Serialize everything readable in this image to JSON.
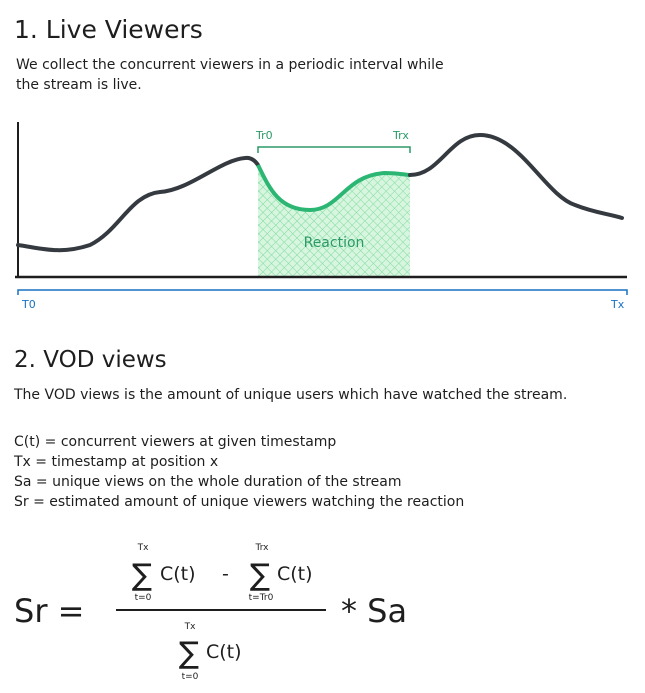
{
  "section1": {
    "title": "1. Live Viewers",
    "description": [
      "We collect the concurrent viewers in a periodic interval while",
      "the stream is live."
    ],
    "chart_labels": {
      "reaction_start": "Tr0",
      "reaction_end": "Trx",
      "reaction": "Reaction",
      "start": "T0",
      "end": "Tx"
    }
  },
  "section2": {
    "title": "2. VOD views",
    "description": "The VOD views is the amount of unique users which have watched the stream.",
    "definitions": [
      "C(t) = concurrent viewers at given timestamp",
      "Tx = timestamp at position x",
      "Sa = unique views on the whole duration of the stream",
      "Sr = estimated amount of unique viewers watching the reaction"
    ],
    "formula": {
      "lhs": "Sr =",
      "rhs": "* Sa",
      "numerator": [
        {
          "sigma": "∑",
          "upper": "Tx",
          "lower": "t=0",
          "term": "C(t)"
        },
        {
          "operator": "-"
        },
        {
          "sigma": "∑",
          "upper": "Trx",
          "lower": "t=Tr0",
          "term": "C(t)"
        }
      ],
      "denominator": {
        "sigma": "∑",
        "upper": "Tx",
        "lower": "t=0",
        "term": "C(t)"
      }
    }
  }
}
